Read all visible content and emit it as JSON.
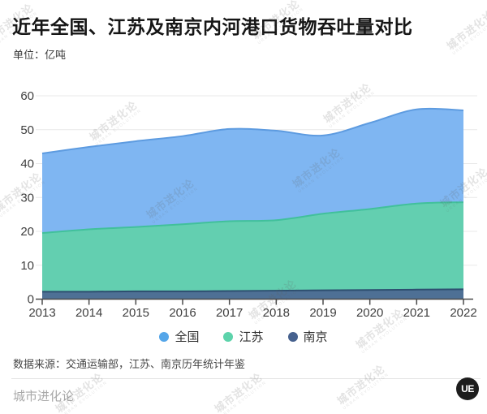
{
  "header": {
    "title": "近年全国、江苏及南京内河港口货物吞吐量对比",
    "unit_label": "单位：亿吨"
  },
  "chart_data": {
    "type": "area",
    "title": "近年全国、江苏及南京内河港口货物吞吐量对比",
    "unit": "亿吨",
    "x": [
      2013,
      2014,
      2015,
      2016,
      2017,
      2018,
      2019,
      2020,
      2021,
      2022
    ],
    "series": [
      {
        "name": "全国",
        "values": [
          43.0,
          44.9,
          46.6,
          48.1,
          50.2,
          49.7,
          48.3,
          52.0,
          56.0,
          55.7
        ],
        "fill": "#7fb6f2",
        "stroke": "#5d9be0",
        "legend_color": "#55a6e9"
      },
      {
        "name": "江苏",
        "values": [
          19.5,
          20.6,
          21.3,
          22.1,
          23.0,
          23.3,
          25.2,
          26.6,
          28.2,
          28.6
        ],
        "fill": "#63cfb0",
        "stroke": "#41c09b",
        "legend_color": "#5dd3ab"
      },
      {
        "name": "南京",
        "values": [
          2.2,
          2.2,
          2.3,
          2.3,
          2.4,
          2.5,
          2.6,
          2.7,
          2.8,
          2.9
        ],
        "fill": "#4e7095",
        "stroke": "#2e4f70",
        "legend_color": "#46618e"
      }
    ],
    "ylim": [
      0,
      60
    ],
    "ytick_step": 10,
    "yticks": [
      "0",
      "10",
      "20",
      "30",
      "40",
      "50",
      "60"
    ],
    "grid": true,
    "legend_position": "bottom",
    "mode": "overlaid",
    "colors": {
      "grid": "#e9e9e9",
      "axis": "#4a4a4a",
      "tick_text": "#3f3f3f"
    }
  },
  "footer": {
    "source": "数据来源：交通运输部，江苏、南京历年统计年鉴",
    "brand": "城市进化论",
    "logo_text": "UE"
  },
  "watermark": {
    "text": "城市进化论",
    "subtext": "URBAN EVOLUTION"
  }
}
